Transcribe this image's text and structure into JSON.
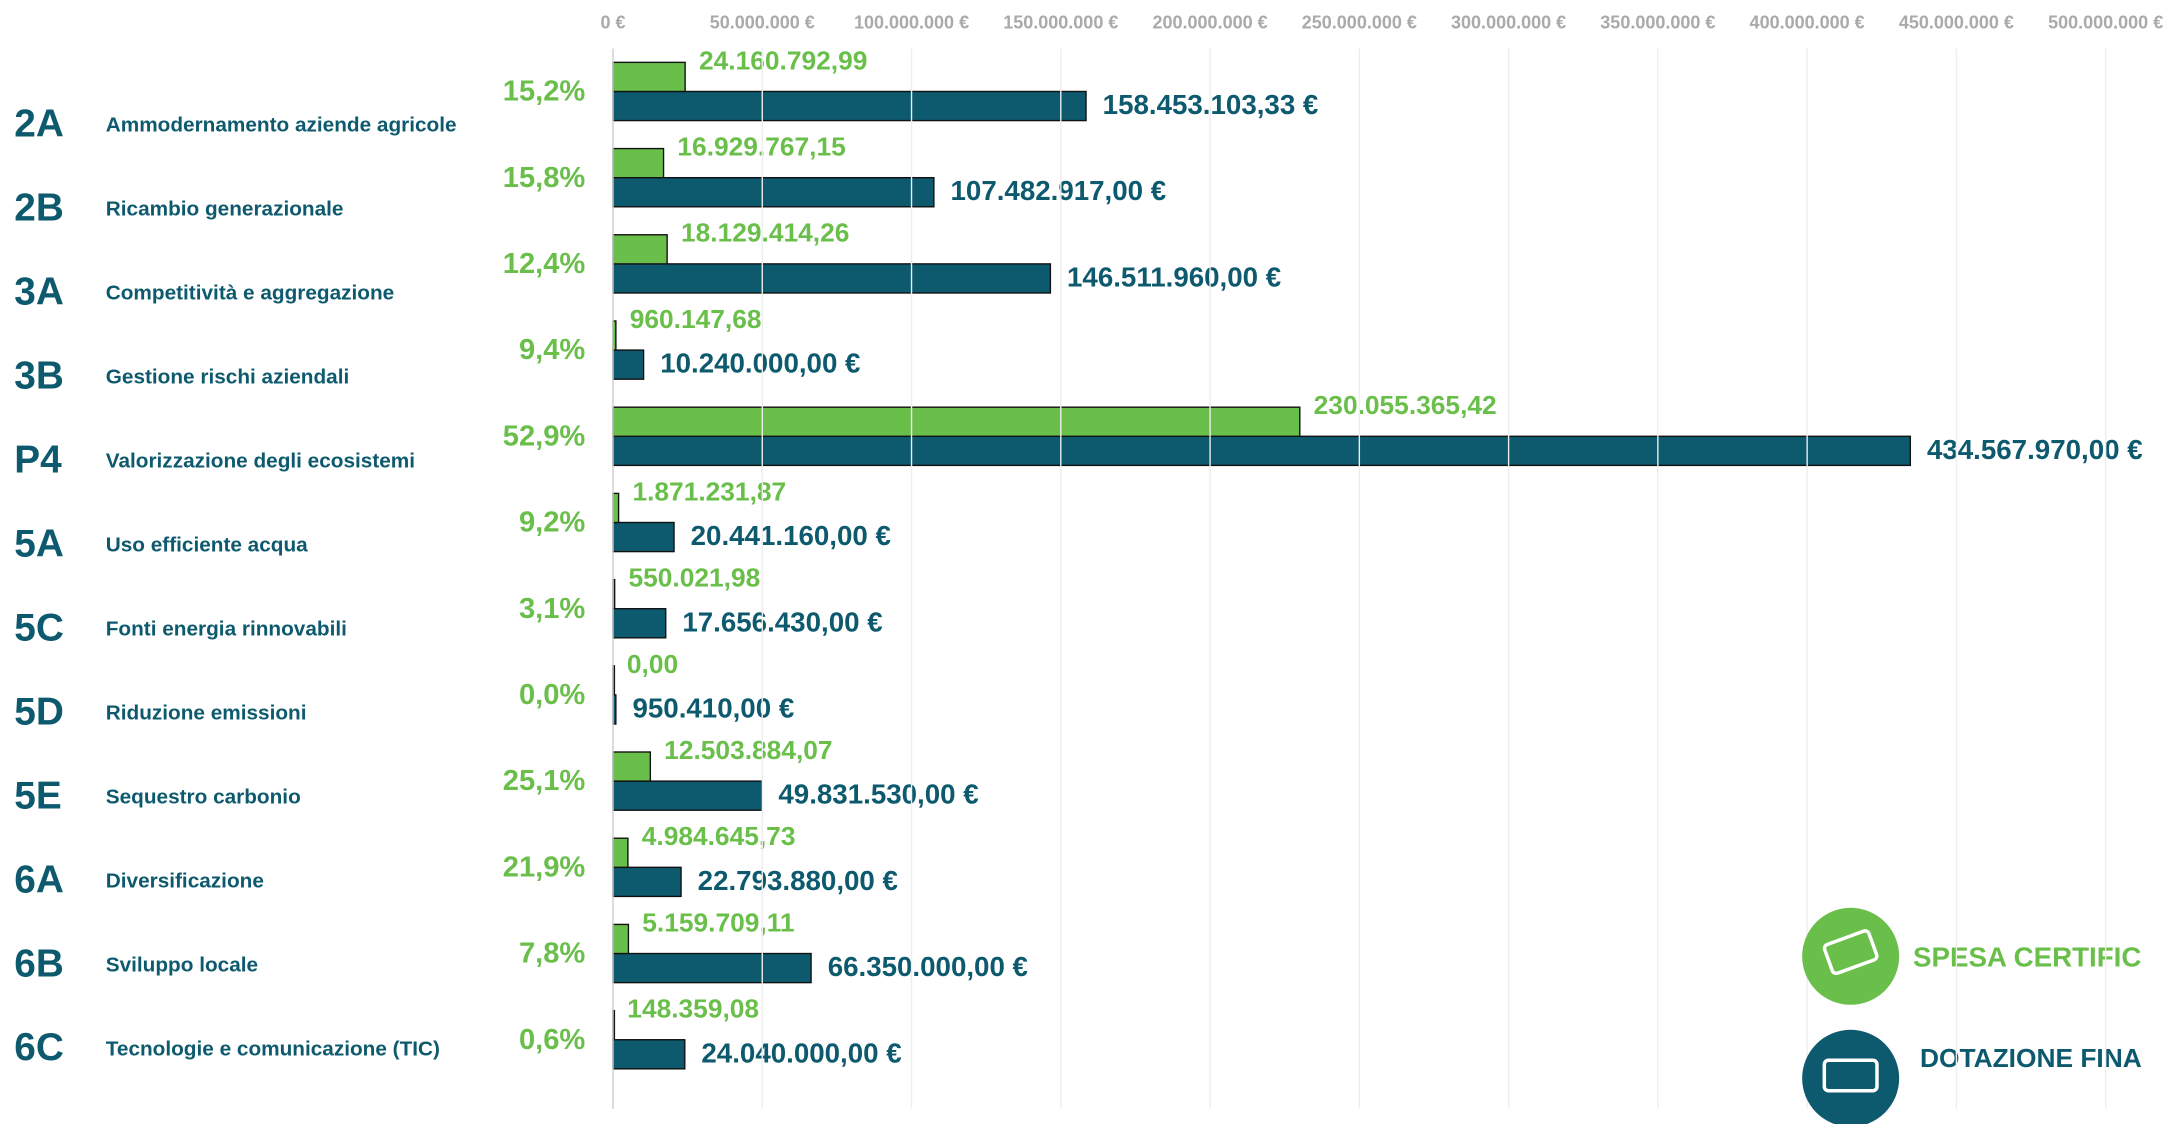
{
  "chart_data": {
    "type": "bar",
    "codes": [
      "2A",
      "2B",
      "3A",
      "3B",
      "P4",
      "5A",
      "5C",
      "5D",
      "5E",
      "6A",
      "6B",
      "6C"
    ],
    "categories": [
      "Ammodernamento aziende agricole",
      "Ricambio generazionale",
      "Competitività e aggregazione",
      "Gestione rischi aziendali",
      "Valorizzazione degli ecosistemi",
      "Uso efficiente acqua",
      "Fonti energia rinnovabili",
      "Riduzione emissioni",
      "Sequestro carbonio",
      "Diversificazione",
      "Sviluppo locale",
      "Tecnologie e comunicazione (TIC)"
    ],
    "percent_values": [
      15.2,
      15.8,
      12.4,
      9.4,
      52.9,
      9.2,
      3.1,
      0.0,
      25.1,
      21.9,
      7.8,
      0.6
    ],
    "percent_labels": [
      "15,2%",
      "15,8%",
      "12,4%",
      "9,4%",
      "52,9%",
      "9,2%",
      "3,1%",
      "0,0%",
      "25,1%",
      "21,9%",
      "7,8%",
      "0,6%"
    ],
    "series": [
      {
        "name": "SPESA CERTIFIC",
        "color": "#6abf4b",
        "values": [
          24160792.99,
          16929767.15,
          18129414.26,
          960147.68,
          230055365.42,
          1871231.87,
          550021.98,
          0,
          12503884.07,
          4984645.73,
          5159709.11,
          148359.08
        ],
        "value_labels": [
          "24.160.792,99",
          "16.929.767,15",
          "18.129.414,26",
          "960.147,68",
          "230.055.365,42",
          "1.871.231,87",
          "550.021,98",
          "0,00",
          "12.503.884,07",
          "4.984.645,73",
          "5.159.709,11",
          "148.359,08"
        ]
      },
      {
        "name": "DOTAZIONE FINA",
        "color": "#0d5a6e",
        "values": [
          158453103.33,
          107482917.0,
          146511960.0,
          10240000.0,
          434567970.0,
          20441160.0,
          17656430.0,
          950410.0,
          49831530.0,
          22793880.0,
          66350000.0,
          24040000.0
        ],
        "value_labels": [
          "158.453.103,33 €",
          "107.482.917,00 €",
          "146.511.960,00 €",
          "10.240.000,00 €",
          "434.567.970,00 €",
          "20.441.160,00 €",
          "17.656.430,00 €",
          "950.410,00 €",
          "49.831.530,00 €",
          "22.793.880,00 €",
          "66.350.000,00 €",
          "24.040.000,00 €"
        ]
      }
    ],
    "xlim": [
      0,
      500000000
    ],
    "xticks": [
      {
        "value": 0,
        "label": "0 €"
      },
      {
        "value": 50000000,
        "label": "50.000.000 €"
      },
      {
        "value": 100000000,
        "label": "100.000.000 €"
      },
      {
        "value": 150000000,
        "label": "150.000.000 €"
      },
      {
        "value": 200000000,
        "label": "200.000.000 €"
      },
      {
        "value": 250000000,
        "label": "250.000.000 €"
      },
      {
        "value": 300000000,
        "label": "300.000.000 €"
      },
      {
        "value": 350000000,
        "label": "350.000.000 €"
      },
      {
        "value": 400000000,
        "label": "400.000.000 €"
      },
      {
        "value": 450000000,
        "label": "450.000.000 €"
      },
      {
        "value": 500000000,
        "label": "500.000.000 €"
      }
    ],
    "grid": true
  }
}
